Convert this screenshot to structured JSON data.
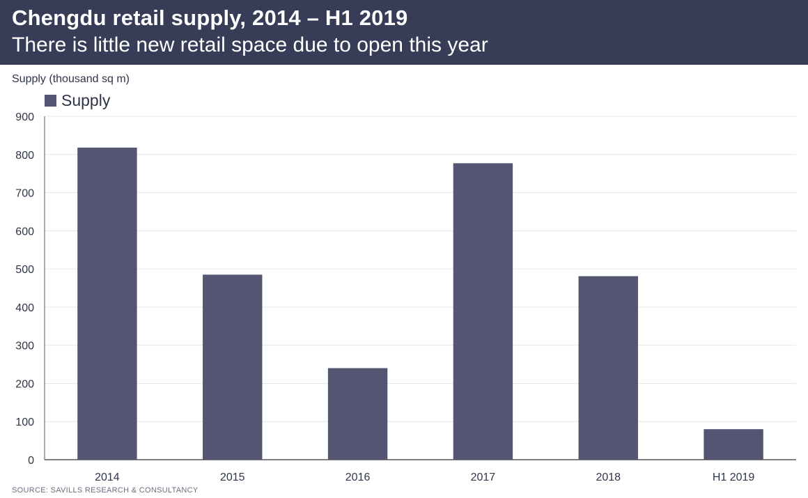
{
  "header": {
    "title": "Chengdu retail supply, 2014 – H1 2019",
    "subtitle": "There is little new retail space due to open this year"
  },
  "footer": {
    "source": "SOURCE: SAVILLS RESEARCH & CONSULTANCY"
  },
  "colors": {
    "header_bg": "#373d57",
    "bar": "#545573",
    "grid": "#e6e6e6",
    "axis": "#555555",
    "text": "#2f3448"
  },
  "chart_data": {
    "type": "bar",
    "title": "Chengdu retail supply, 2014 – H1 2019",
    "subtitle": "There is little new retail space due to open this year",
    "xlabel": "",
    "ylabel": "Supply (thousand sq m)",
    "categories": [
      "2014",
      "2015",
      "2016",
      "2017",
      "2018",
      "H1 2019"
    ],
    "series": [
      {
        "name": "Supply",
        "values": [
          818,
          485,
          240,
          777,
          481,
          80
        ]
      }
    ],
    "ylim": [
      0,
      900
    ],
    "yticks": [
      0,
      100,
      200,
      300,
      400,
      500,
      600,
      700,
      800,
      900
    ],
    "grid": true,
    "legend": "top-left"
  }
}
